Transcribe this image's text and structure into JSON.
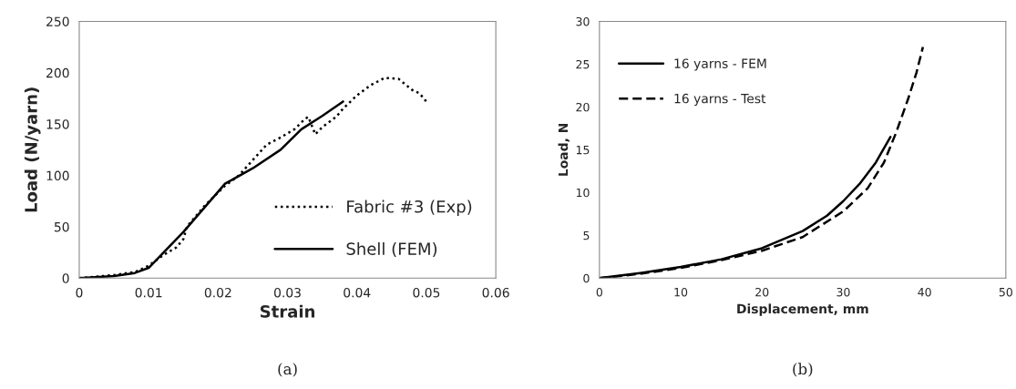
{
  "chart_data": [
    {
      "type": "line",
      "xlabel": "Strain",
      "ylabel": "Load (N/yarn)",
      "xlim": [
        0,
        0.06
      ],
      "ylim": [
        0,
        250
      ],
      "xticks": [
        0,
        0.01,
        0.02,
        0.03,
        0.04,
        0.05,
        0.06
      ],
      "yticks": [
        0,
        50,
        100,
        150,
        200,
        250
      ],
      "grid": false,
      "legend": "bottom right",
      "annotations": [
        "(a)"
      ],
      "series": [
        {
          "name": "Fabric #3 (Exp)",
          "color": "#000000",
          "line_style": "dotted",
          "x": [
            0,
            0.005,
            0.008,
            0.01,
            0.012,
            0.014,
            0.015,
            0.0155,
            0.018,
            0.021,
            0.023,
            0.025,
            0.027,
            0.029,
            0.031,
            0.0325,
            0.033,
            0.034,
            0.035,
            0.037,
            0.038,
            0.04,
            0.042,
            0.044,
            0.046,
            0.048,
            0.049,
            0.05
          ],
          "values": [
            0,
            3,
            6,
            12,
            22,
            30,
            38,
            50,
            70,
            90,
            100,
            115,
            130,
            137,
            145,
            155,
            157,
            140,
            147,
            157,
            165,
            178,
            188,
            195,
            194,
            183,
            180,
            172
          ]
        },
        {
          "name": "Shell (FEM)",
          "color": "#000000",
          "line_style": "solid",
          "x": [
            0,
            0.005,
            0.008,
            0.01,
            0.015,
            0.021,
            0.025,
            0.029,
            0.032,
            0.035,
            0.038
          ],
          "values": [
            0,
            2,
            5,
            10,
            45,
            92,
            107,
            125,
            145,
            158,
            172
          ]
        }
      ]
    },
    {
      "type": "line",
      "xlabel": "Displacement, mm",
      "ylabel": "Load, N",
      "xlim": [
        0,
        50
      ],
      "ylim": [
        0,
        30
      ],
      "xticks": [
        0,
        10,
        20,
        30,
        40,
        50
      ],
      "yticks": [
        0,
        5,
        10,
        15,
        20,
        25,
        30
      ],
      "grid": false,
      "legend": "top left",
      "annotations": [
        "(b)"
      ],
      "series": [
        {
          "name": "16 yarns - FEM",
          "color": "#000000",
          "line_style": "solid",
          "x": [
            0,
            5,
            10,
            15,
            20,
            25,
            28,
            30,
            32,
            34,
            35.8
          ],
          "values": [
            0,
            0.6,
            1.3,
            2.2,
            3.5,
            5.5,
            7.3,
            9,
            11,
            13.5,
            16.5
          ]
        },
        {
          "name": "16 yarns - Test",
          "color": "#000000",
          "line_style": "dashed",
          "x": [
            0,
            5,
            10,
            15,
            20,
            25,
            30,
            33,
            35,
            36.5,
            38,
            39,
            39.8
          ],
          "values": [
            0,
            0.5,
            1.2,
            2.1,
            3.2,
            4.8,
            7.8,
            10.5,
            13.5,
            17,
            21,
            24,
            27
          ]
        }
      ]
    }
  ]
}
